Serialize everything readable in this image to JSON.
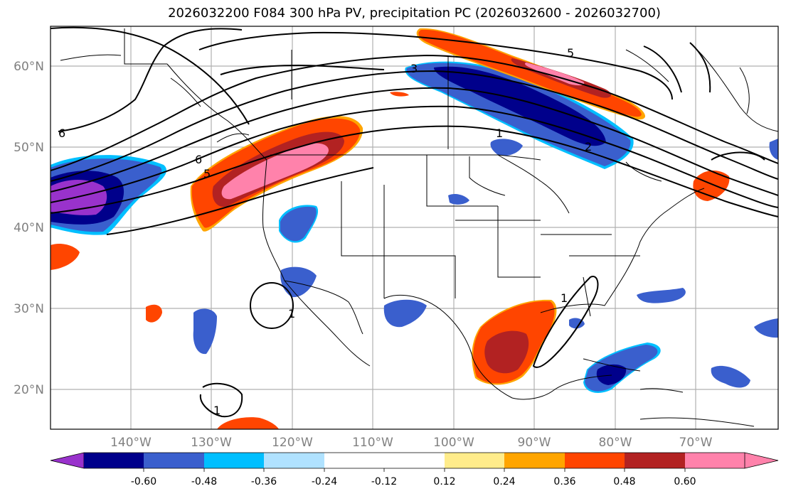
{
  "title": "2026032200 F084 300 hPa PV, precipitation PC (2026032600 - 2026032700)",
  "lat_labels": [
    "60°N",
    "50°N",
    "40°N",
    "30°N",
    "20°N"
  ],
  "lon_labels": [
    "140°W",
    "130°W",
    "120°W",
    "110°W",
    "100°W",
    "90°W",
    "80°W",
    "70°W"
  ],
  "contour_labels": [
    "6",
    "6",
    "5",
    "5",
    "3",
    "1",
    "2",
    "1",
    "1",
    "1"
  ],
  "colorbar": {
    "ticks": [
      "-0.60",
      "-0.48",
      "-0.36",
      "-0.24",
      "-0.12",
      "0.12",
      "0.24",
      "0.36",
      "0.48",
      "0.60"
    ],
    "colors": [
      "#9932cc",
      "#00008b",
      "#3a5fcd",
      "#00bfff",
      "#b0e2ff",
      "#ffffff",
      "#ffec8b",
      "#ffa500",
      "#ff4500",
      "#b22222",
      "#ff82ab"
    ]
  }
}
